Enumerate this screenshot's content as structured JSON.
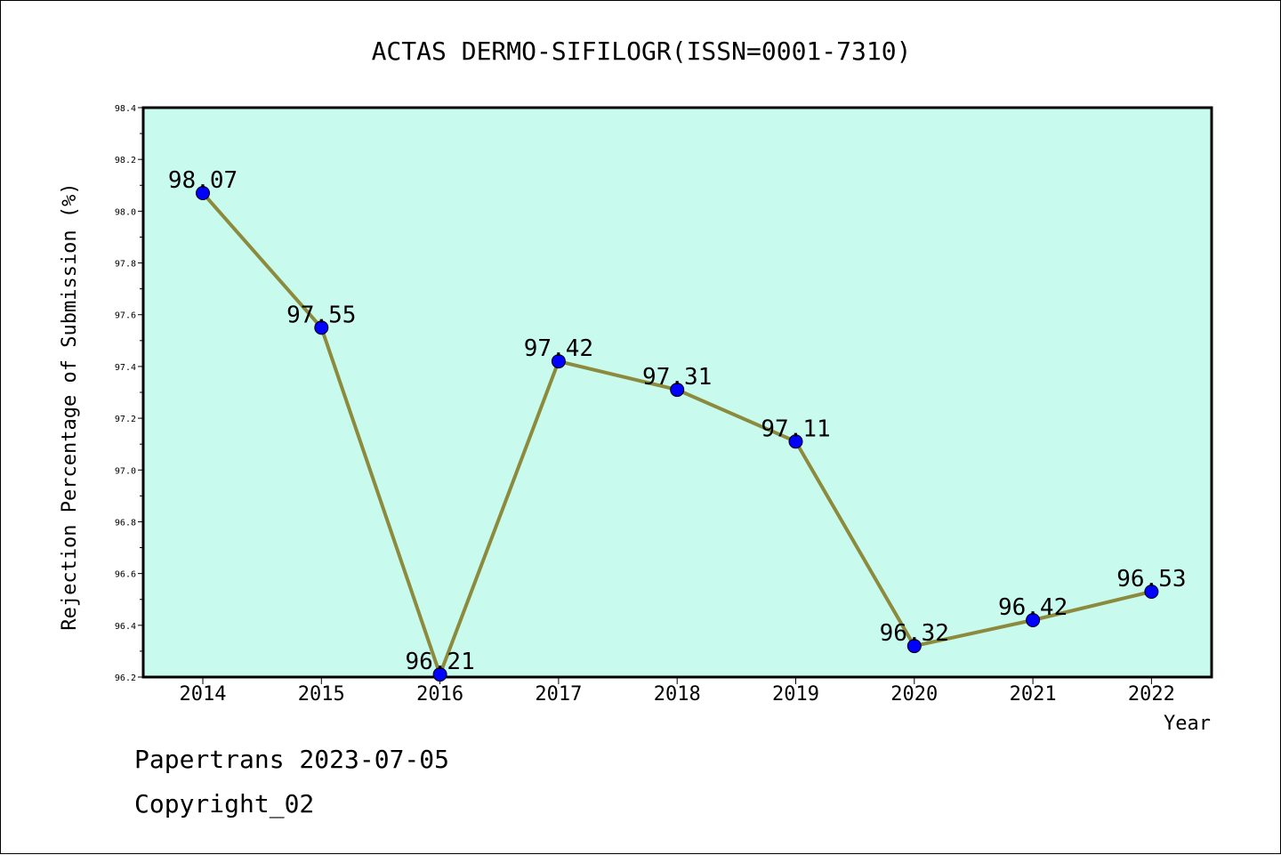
{
  "chart_data": {
    "type": "line",
    "title": "ACTAS DERMO-SIFILOGR(ISSN=0001-7310)",
    "xlabel": "Year",
    "ylabel": "Rejection Percentage of Submission (%)",
    "categories": [
      "2014",
      "2015",
      "2016",
      "2017",
      "2018",
      "2019",
      "2020",
      "2021",
      "2022"
    ],
    "values": [
      98.07,
      97.55,
      96.21,
      97.42,
      97.31,
      97.11,
      96.32,
      96.42,
      96.53
    ],
    "data_labels": [
      "98.07",
      "97.55",
      "96.21",
      "97.42",
      "97.31",
      "97.11",
      "96.32",
      "96.42",
      "96.53"
    ],
    "ylim": [
      96.2,
      98.4
    ],
    "yticks": [
      "96.2",
      "96.4",
      "96.6",
      "96.8",
      "97.0",
      "97.2",
      "97.4",
      "97.6",
      "97.8",
      "98.0",
      "98.2",
      "98.4"
    ],
    "grid": false,
    "colors": {
      "plot_background": "#c8fbee",
      "line": "#8c8a3c",
      "marker": "#0000ff"
    }
  },
  "footer": {
    "line1": "Papertrans 2023-07-05",
    "line2": "Copyright_02"
  }
}
